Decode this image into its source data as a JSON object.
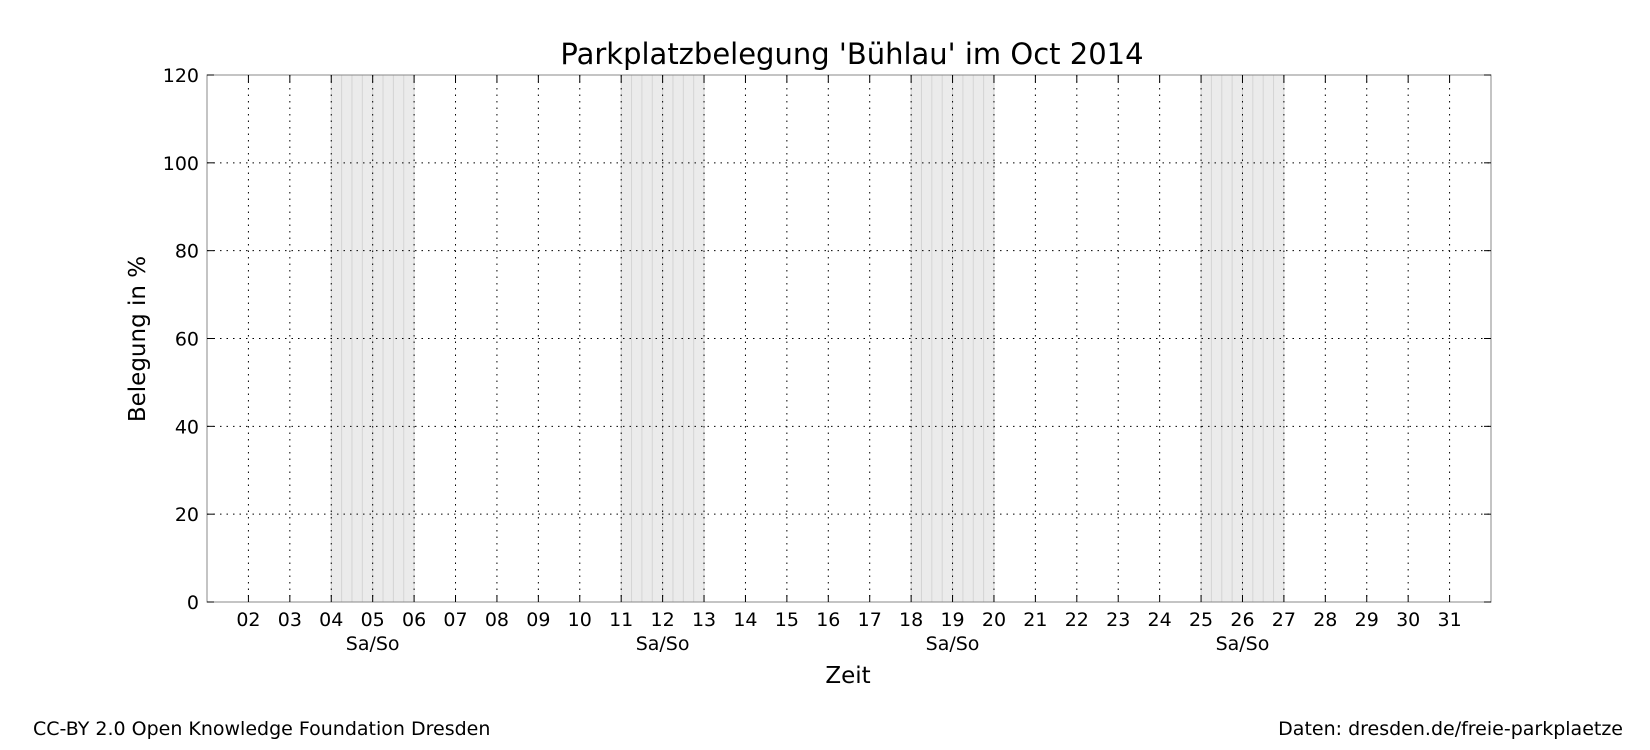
{
  "chart_data": {
    "type": "line",
    "title": "Parkplatzbelegung 'Bühlau' im Oct 2014",
    "xlabel": "Zeit",
    "ylabel": "Belegung in %",
    "xlim": [
      "2014-10-01",
      "2014-11-01"
    ],
    "ylim": [
      0,
      120
    ],
    "yticks": [
      0,
      20,
      40,
      60,
      80,
      100,
      120
    ],
    "xticks": [
      {
        "date": "2014-10-02",
        "label": "02"
      },
      {
        "date": "2014-10-03",
        "label": "03"
      },
      {
        "date": "2014-10-04",
        "label": "04"
      },
      {
        "date": "2014-10-05",
        "label": "05"
      },
      {
        "date": "2014-10-06",
        "label": "06"
      },
      {
        "date": "2014-10-07",
        "label": "07"
      },
      {
        "date": "2014-10-08",
        "label": "08"
      },
      {
        "date": "2014-10-09",
        "label": "09"
      },
      {
        "date": "2014-10-10",
        "label": "10"
      },
      {
        "date": "2014-10-11",
        "label": "11"
      },
      {
        "date": "2014-10-12",
        "label": "12"
      },
      {
        "date": "2014-10-13",
        "label": "13"
      },
      {
        "date": "2014-10-14",
        "label": "14"
      },
      {
        "date": "2014-10-15",
        "label": "15"
      },
      {
        "date": "2014-10-16",
        "label": "16"
      },
      {
        "date": "2014-10-17",
        "label": "17"
      },
      {
        "date": "2014-10-18",
        "label": "18"
      },
      {
        "date": "2014-10-19",
        "label": "19"
      },
      {
        "date": "2014-10-20",
        "label": "20"
      },
      {
        "date": "2014-10-21",
        "label": "21"
      },
      {
        "date": "2014-10-22",
        "label": "22"
      },
      {
        "date": "2014-10-23",
        "label": "23"
      },
      {
        "date": "2014-10-24",
        "label": "24"
      },
      {
        "date": "2014-10-25",
        "label": "25"
      },
      {
        "date": "2014-10-26",
        "label": "26"
      },
      {
        "date": "2014-10-27",
        "label": "27"
      },
      {
        "date": "2014-10-28",
        "label": "28"
      },
      {
        "date": "2014-10-29",
        "label": "29"
      },
      {
        "date": "2014-10-30",
        "label": "30"
      },
      {
        "date": "2014-10-31",
        "label": "31"
      }
    ],
    "weekend_spans": [
      {
        "start": "2014-10-04",
        "end": "2014-10-06",
        "label": "Sa/So"
      },
      {
        "start": "2014-10-11",
        "end": "2014-10-13",
        "label": "Sa/So"
      },
      {
        "start": "2014-10-18",
        "end": "2014-10-20",
        "label": "Sa/So"
      },
      {
        "start": "2014-10-25",
        "end": "2014-10-27",
        "label": "Sa/So"
      }
    ],
    "series": [],
    "grid": true,
    "colors": {
      "weekend_fill": "#ebebeb",
      "weekend_lines": "#d4d4d4",
      "grid": "#000000",
      "axis": "#888888"
    }
  },
  "footer": {
    "license": "CC-BY 2.0 Open Knowledge Foundation Dresden",
    "source": "Daten: dresden.de/freie-parkplaetze"
  }
}
